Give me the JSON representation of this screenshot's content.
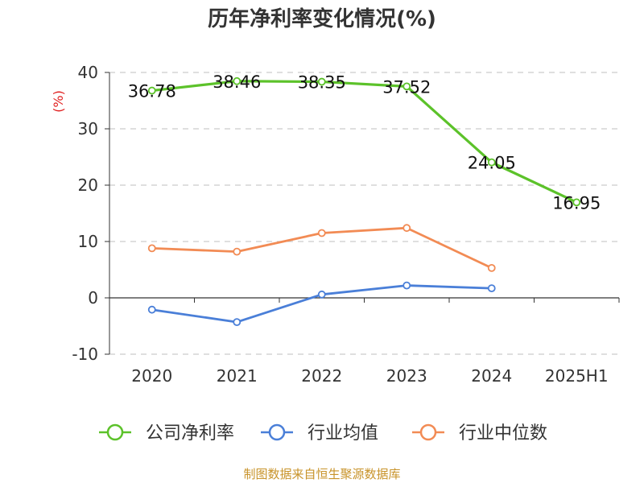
{
  "chart_data": {
    "type": "line",
    "title": "历年净利率变化情况(%)",
    "unit_label": "(%)",
    "categories": [
      "2020",
      "2021",
      "2022",
      "2023",
      "2024",
      "2025H1"
    ],
    "ylim": [
      -10,
      40
    ],
    "yticks": [
      "40",
      "30",
      "20",
      "10",
      "0",
      "-10"
    ],
    "grid": true,
    "legend_position": "bottom",
    "series": [
      {
        "name": "公司净利率",
        "color": "#5cc22a",
        "values": [
          36.78,
          38.46,
          38.35,
          37.52,
          24.05,
          16.95
        ],
        "labels": [
          "36.78",
          "38.46",
          "38.35",
          "37.52",
          "24.05",
          "16.95"
        ]
      },
      {
        "name": "行业均值",
        "color": "#4a7fd8",
        "values": [
          -2.1,
          -4.3,
          0.6,
          2.2,
          1.7,
          null
        ]
      },
      {
        "name": "行业中位数",
        "color": "#f28b54",
        "values": [
          8.8,
          8.2,
          11.5,
          12.4,
          5.3,
          null
        ]
      }
    ]
  },
  "source": "制图数据来自恒生聚源数据库"
}
